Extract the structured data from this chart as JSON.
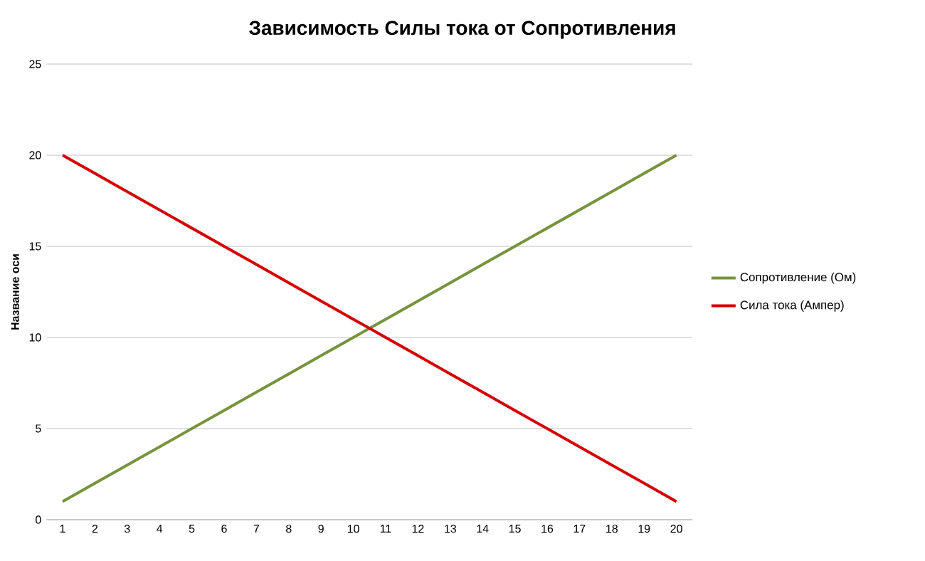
{
  "chart_data": {
    "type": "line",
    "title": "Зависимость Силы тока от Сопротивления",
    "ylabel": "Название оси",
    "categories": [
      "1",
      "2",
      "3",
      "4",
      "5",
      "6",
      "7",
      "8",
      "9",
      "10",
      "11",
      "12",
      "13",
      "14",
      "15",
      "16",
      "17",
      "18",
      "19",
      "20"
    ],
    "series": [
      {
        "name": "Сопротивление (Ом)",
        "color": "#77933c",
        "values": [
          1,
          2,
          3,
          4,
          5,
          6,
          7,
          8,
          9,
          10,
          11,
          12,
          13,
          14,
          15,
          16,
          17,
          18,
          19,
          20
        ]
      },
      {
        "name": "Сила тока (Ампер)",
        "color": "#d40000",
        "values": [
          20,
          19,
          18,
          17,
          16,
          15,
          14,
          13,
          12,
          11,
          10,
          9,
          8,
          7,
          6,
          5,
          4,
          3,
          2,
          1
        ]
      }
    ],
    "ylim": [
      0,
      25
    ],
    "yticks": [
      0,
      5,
      10,
      15,
      20,
      25
    ],
    "grid": "y",
    "legend": "right",
    "marker": "none",
    "line_style": "solid"
  }
}
